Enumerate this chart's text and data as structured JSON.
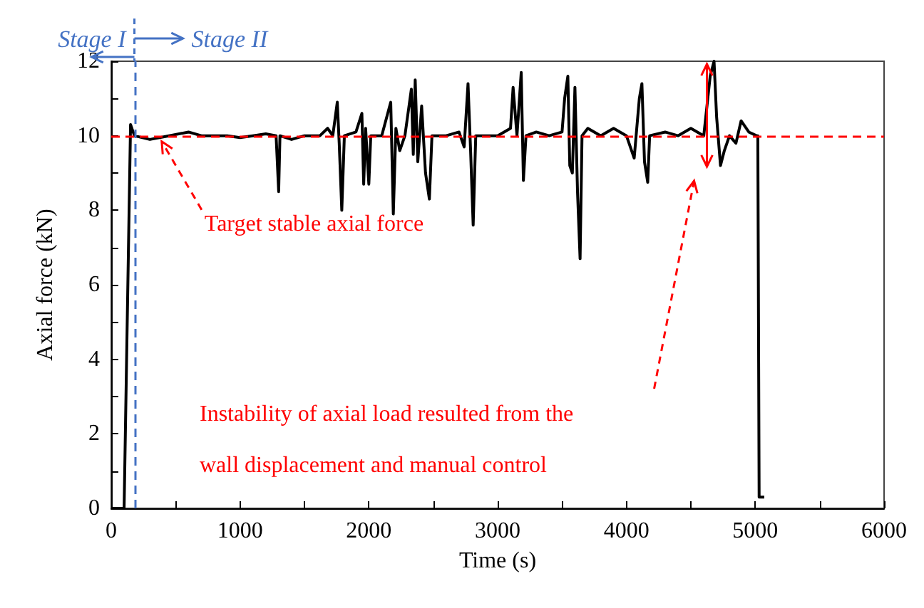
{
  "chart_data": {
    "type": "line",
    "xlabel": "Time (s)",
    "ylabel": "Axial force (kN)",
    "x": [
      0,
      100,
      150,
      180,
      300,
      450,
      600,
      700,
      900,
      1000,
      1100,
      1200,
      1280,
      1300,
      1310,
      1400,
      1500,
      1620,
      1680,
      1720,
      1755,
      1770,
      1790,
      1810,
      1900,
      1946,
      1960,
      1975,
      2000,
      2015,
      2100,
      2170,
      2190,
      2210,
      2240,
      2280,
      2330,
      2345,
      2360,
      2380,
      2410,
      2440,
      2470,
      2490,
      2600,
      2700,
      2740,
      2770,
      2790,
      2810,
      2830,
      2900,
      3000,
      3100,
      3120,
      3150,
      3183,
      3200,
      3220,
      3300,
      3400,
      3500,
      3520,
      3545,
      3560,
      3580,
      3600,
      3620,
      3640,
      3655,
      3700,
      3800,
      3900,
      4000,
      4060,
      4100,
      4120,
      4140,
      4165,
      4180,
      4300,
      4400,
      4500,
      4600,
      4650,
      4680,
      4700,
      4730,
      4760,
      4800,
      4850,
      4890,
      4950,
      5010,
      5020,
      5030,
      5070
    ],
    "series": [
      {
        "color": "#000000",
        "values": [
          0,
          0,
          10.3,
          10.0,
          9.9,
          10.0,
          10.1,
          10.0,
          10.0,
          9.95,
          10.0,
          10.05,
          10.0,
          8.5,
          10.0,
          9.9,
          10.0,
          10.0,
          10.2,
          10.0,
          10.9,
          9.8,
          8.0,
          10.0,
          10.1,
          10.6,
          8.7,
          10.2,
          8.7,
          10.0,
          10.0,
          10.9,
          7.9,
          10.2,
          9.6,
          10.0,
          11.25,
          9.5,
          11.5,
          9.3,
          10.8,
          9.0,
          8.3,
          10.0,
          10.0,
          10.1,
          9.7,
          11.4,
          9.6,
          7.6,
          10.0,
          10.0,
          10.0,
          10.2,
          11.3,
          10.0,
          11.7,
          8.8,
          10.0,
          10.1,
          10.0,
          10.1,
          11.0,
          11.6,
          9.2,
          9.0,
          11.3,
          8.5,
          6.7,
          10.0,
          10.2,
          10.0,
          10.2,
          10.0,
          9.4,
          11.0,
          11.4,
          9.3,
          8.75,
          10.0,
          10.1,
          10.0,
          10.2,
          10.0,
          11.6,
          12.0,
          10.5,
          9.2,
          9.6,
          10.0,
          9.8,
          10.4,
          10.1,
          10.0,
          10.0,
          0.3,
          0.3
        ]
      }
    ],
    "xlim": [
      0,
      6000
    ],
    "xticks": [
      0,
      {
        "value": 500,
        "label": null
      },
      1000,
      {
        "value": 1500,
        "label": null
      },
      2000,
      {
        "value": 2500,
        "label": null
      },
      3000,
      {
        "value": 3500,
        "label": null
      },
      4000,
      {
        "value": 4500,
        "label": null
      },
      5000,
      {
        "value": 5500,
        "label": null
      },
      6000
    ],
    "ylim": [
      0,
      12
    ],
    "yticks": [
      0,
      {
        "value": 1,
        "label": null
      },
      2,
      {
        "value": 3,
        "label": null
      },
      4,
      {
        "value": 5,
        "label": null
      },
      6,
      {
        "value": 7,
        "label": null
      },
      8,
      {
        "value": 9,
        "label": null
      },
      10,
      {
        "value": 11,
        "label": null
      },
      12
    ],
    "ref_lines": [
      {
        "axis": "x",
        "value": 180,
        "color": "#4472c4",
        "line_style": "dashed"
      },
      {
        "axis": "y",
        "value": 10,
        "color": "#ff0000",
        "line_style": "dashed"
      }
    ],
    "annotations": [
      "Stage I",
      "Stage II",
      {
        "text": "Target stable axial force",
        "x": 370,
        "y": 10
      },
      "Instability of axial load resulted from the wall displacement and manual control"
    ],
    "grid": false
  }
}
